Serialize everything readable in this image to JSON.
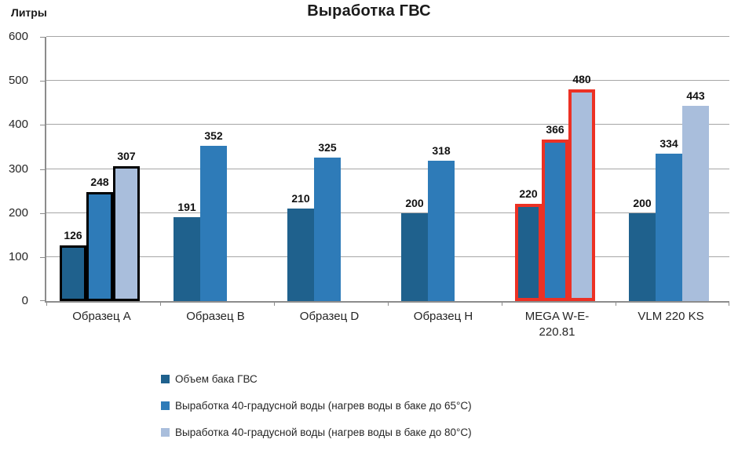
{
  "chart_data": {
    "type": "bar",
    "title": "Выработка ГВС",
    "ylabel": "Литры",
    "ylim": [
      0,
      600
    ],
    "yticks": [
      0,
      100,
      200,
      300,
      400,
      500,
      600
    ],
    "grid": true,
    "legend_position": "bottom-left",
    "categories": [
      "Образец A",
      "Образец B",
      "Образец D",
      "Образец H",
      "MEGA W-E-\n220.81",
      "VLM 220 KS"
    ],
    "series": [
      {
        "name": "Объем бака ГВС",
        "color": "#1F618D",
        "values": [
          126,
          191,
          210,
          200,
          220,
          200
        ]
      },
      {
        "name": "Выработка 40-градусной воды (нагрев воды  в баке до 65°С)",
        "color": "#2E7BB8",
        "values": [
          248,
          352,
          325,
          318,
          366,
          334
        ]
      },
      {
        "name": "Выработка 40-градусной воды (нагрев воды  в баке до 80°С)",
        "color": "#A9BEDC",
        "values": [
          307,
          null,
          null,
          null,
          480,
          443
        ]
      }
    ],
    "highlights": [
      {
        "category_index": 0,
        "outline_color": "#000000",
        "outline_width": 3
      },
      {
        "category_index": 4,
        "outline_color": "#EC3124",
        "outline_width": 4
      }
    ]
  }
}
